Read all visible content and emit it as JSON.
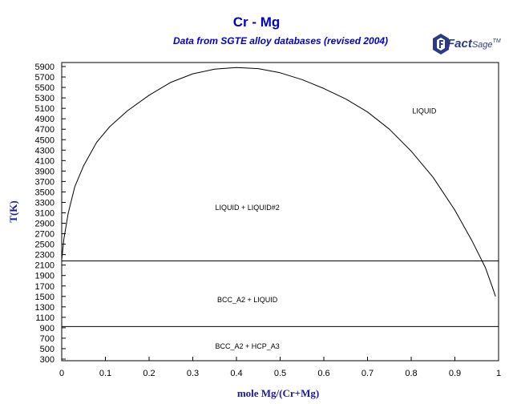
{
  "chart_data": {
    "type": "line",
    "title": "Cr - Mg",
    "subtitle": "Data from SGTE alloy databases (revised 2004)",
    "logo": {
      "brand": "Fact",
      "product": "Sage",
      "mark": "TM"
    },
    "xlabel": "mole Mg/(Cr+Mg)",
    "ylabel": "T(K)",
    "xlim": [
      0,
      1
    ],
    "ylim": [
      300,
      5900
    ],
    "x_ticks": [
      "0",
      "0.1",
      "0.2",
      "0.3",
      "0.4",
      "0.5",
      "0.6",
      "0.7",
      "0.8",
      "0.9",
      "1"
    ],
    "y_ticks": [
      "300",
      "500",
      "700",
      "900",
      "1100",
      "1300",
      "1500",
      "1700",
      "1900",
      "2100",
      "2300",
      "2500",
      "2700",
      "2900",
      "3100",
      "3300",
      "3500",
      "3700",
      "3900",
      "4100",
      "4300",
      "4500",
      "4700",
      "4900",
      "5100",
      "5300",
      "5500",
      "5700",
      "5900"
    ],
    "series": [
      {
        "x": [
          0.0,
          0.005,
          0.015,
          0.03,
          0.05,
          0.08,
          0.11,
          0.15,
          0.2,
          0.25,
          0.3,
          0.35,
          0.4,
          0.45,
          0.5,
          0.55,
          0.6,
          0.65,
          0.7,
          0.75,
          0.8,
          0.85,
          0.9,
          0.94,
          0.97,
          0.985,
          0.993
        ],
        "y": [
          2200,
          2600,
          3100,
          3600,
          4000,
          4450,
          4750,
          5050,
          5350,
          5600,
          5760,
          5850,
          5880,
          5860,
          5780,
          5650,
          5480,
          5280,
          5030,
          4700,
          4280,
          3780,
          3150,
          2550,
          2050,
          1700,
          1500
        ]
      },
      {
        "x": [
          0,
          1
        ],
        "y": [
          2180,
          2180
        ]
      },
      {
        "x": [
          0,
          1
        ],
        "y": [
          923,
          923
        ]
      }
    ],
    "annotations": [
      {
        "text": "LIQUID",
        "x": 0.83,
        "y": 5000
      },
      {
        "text": "LIQUID + LIQUID#2",
        "x": 0.425,
        "y": 3150
      },
      {
        "text": "BCC_A2 + LIQUID",
        "x": 0.425,
        "y": 1390
      },
      {
        "text": "BCC_A2 + HCP_A3",
        "x": 0.425,
        "y": 500
      }
    ],
    "grid": false
  }
}
